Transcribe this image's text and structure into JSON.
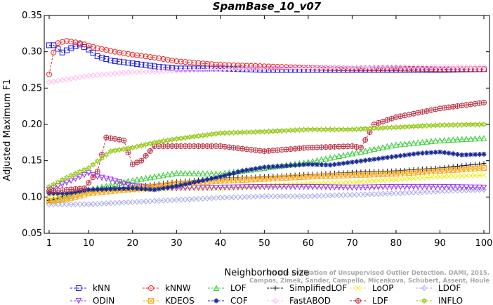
{
  "chart_data": {
    "type": "line",
    "title": "SpamBase_10_v07",
    "xlabel": "Neighborhood size",
    "ylabel": "Adjusted Maximum F1",
    "xlim": [
      1,
      100
    ],
    "ylim": [
      0.05,
      0.35
    ],
    "x_ticks": [
      1,
      10,
      20,
      30,
      40,
      50,
      60,
      70,
      80,
      90,
      100
    ],
    "y_ticks": [
      0.05,
      0.1,
      0.15,
      0.2,
      0.25,
      0.3,
      0.35
    ],
    "y_tick_labels": [
      "0.05",
      "0.10",
      "0.15",
      "0.20",
      "0.25",
      "0.30",
      "0.35"
    ],
    "grid": false,
    "legend_placement": "bottom",
    "watermark_lines": [
      "Campos, Zimek, Sander, Campello, Micenkova, Schubert, Assent, Houle",
      "On the Evaluation of Unsupervised Outlier Detection. DAMI, 2015."
    ],
    "series": [
      {
        "name": "kNN",
        "color": "#2222dd",
        "marker": "square",
        "points": [
          [
            1,
            0.309
          ],
          [
            2,
            0.309
          ],
          [
            4,
            0.299
          ],
          [
            6,
            0.305
          ],
          [
            8,
            0.31
          ],
          [
            10,
            0.303
          ],
          [
            12,
            0.294
          ],
          [
            15,
            0.288
          ],
          [
            20,
            0.284
          ],
          [
            25,
            0.28
          ],
          [
            30,
            0.277
          ],
          [
            40,
            0.277
          ],
          [
            50,
            0.275
          ],
          [
            60,
            0.275
          ],
          [
            70,
            0.275
          ],
          [
            80,
            0.275
          ],
          [
            90,
            0.275
          ],
          [
            100,
            0.276
          ]
        ]
      },
      {
        "name": "kNNW",
        "color": "#ee2222",
        "marker": "circle",
        "points": [
          [
            1,
            0.269
          ],
          [
            2,
            0.299
          ],
          [
            3,
            0.312
          ],
          [
            5,
            0.315
          ],
          [
            8,
            0.312
          ],
          [
            12,
            0.305
          ],
          [
            16,
            0.3
          ],
          [
            20,
            0.296
          ],
          [
            25,
            0.292
          ],
          [
            30,
            0.287
          ],
          [
            40,
            0.282
          ],
          [
            50,
            0.28
          ],
          [
            60,
            0.278
          ],
          [
            70,
            0.277
          ],
          [
            80,
            0.277
          ],
          [
            90,
            0.276
          ],
          [
            100,
            0.276
          ]
        ]
      },
      {
        "name": "LOF",
        "color": "#33cc33",
        "marker": "triangle-up",
        "points": [
          [
            1,
            0.094
          ],
          [
            5,
            0.099
          ],
          [
            10,
            0.11
          ],
          [
            20,
            0.123
          ],
          [
            30,
            0.133
          ],
          [
            40,
            0.132
          ],
          [
            50,
            0.14
          ],
          [
            60,
            0.148
          ],
          [
            70,
            0.16
          ],
          [
            80,
            0.172
          ],
          [
            90,
            0.178
          ],
          [
            100,
            0.181
          ]
        ]
      },
      {
        "name": "SimplifiedLOF",
        "color": "#111111",
        "marker": "plus",
        "points": [
          [
            1,
            0.095
          ],
          [
            5,
            0.103
          ],
          [
            10,
            0.11
          ],
          [
            20,
            0.114
          ],
          [
            30,
            0.121
          ],
          [
            40,
            0.126
          ],
          [
            50,
            0.128
          ],
          [
            60,
            0.131
          ],
          [
            70,
            0.134
          ],
          [
            80,
            0.136
          ],
          [
            90,
            0.14
          ],
          [
            100,
            0.146
          ]
        ]
      },
      {
        "name": "LoOP",
        "color": "#eeee11",
        "marker": "x",
        "points": [
          [
            1,
            0.1
          ],
          [
            5,
            0.104
          ],
          [
            10,
            0.107
          ],
          [
            20,
            0.109
          ],
          [
            30,
            0.112
          ],
          [
            40,
            0.112
          ],
          [
            50,
            0.115
          ],
          [
            60,
            0.118
          ],
          [
            70,
            0.12
          ],
          [
            80,
            0.124
          ],
          [
            90,
            0.128
          ],
          [
            100,
            0.13
          ]
        ]
      },
      {
        "name": "LDOF",
        "color": "#aaaaee",
        "marker": "diamond",
        "points": [
          [
            1,
            0.09
          ],
          [
            5,
            0.09
          ],
          [
            10,
            0.09
          ],
          [
            20,
            0.093
          ],
          [
            30,
            0.096
          ],
          [
            40,
            0.099
          ],
          [
            50,
            0.101
          ],
          [
            60,
            0.101
          ],
          [
            70,
            0.103
          ],
          [
            80,
            0.105
          ],
          [
            90,
            0.108
          ],
          [
            100,
            0.11
          ]
        ]
      },
      {
        "name": "ODIN",
        "color": "#9933ee",
        "marker": "triangle-down",
        "points": [
          [
            1,
            0.11
          ],
          [
            5,
            0.12
          ],
          [
            10,
            0.133
          ],
          [
            12,
            0.128
          ],
          [
            15,
            0.124
          ],
          [
            20,
            0.115
          ],
          [
            30,
            0.112
          ],
          [
            40,
            0.113
          ],
          [
            50,
            0.114
          ],
          [
            60,
            0.114
          ],
          [
            70,
            0.113
          ],
          [
            80,
            0.114
          ],
          [
            90,
            0.114
          ],
          [
            100,
            0.113
          ]
        ]
      },
      {
        "name": "KDEOS",
        "color": "#ffaa22",
        "marker": "square-x",
        "points": [
          [
            1,
            0.094
          ],
          [
            5,
            0.097
          ],
          [
            10,
            0.105
          ],
          [
            20,
            0.111
          ],
          [
            30,
            0.118
          ],
          [
            40,
            0.122
          ],
          [
            50,
            0.125
          ],
          [
            60,
            0.128
          ],
          [
            70,
            0.13
          ],
          [
            80,
            0.132
          ],
          [
            90,
            0.136
          ],
          [
            100,
            0.14
          ]
        ]
      },
      {
        "name": "COF",
        "color": "#1a2a99",
        "marker": "asterisk",
        "points": [
          [
            1,
            0.105
          ],
          [
            5,
            0.105
          ],
          [
            10,
            0.11
          ],
          [
            20,
            0.112
          ],
          [
            25,
            0.11
          ],
          [
            30,
            0.115
          ],
          [
            40,
            0.128
          ],
          [
            45,
            0.136
          ],
          [
            50,
            0.141
          ],
          [
            55,
            0.143
          ],
          [
            60,
            0.145
          ],
          [
            65,
            0.144
          ],
          [
            70,
            0.148
          ],
          [
            75,
            0.152
          ],
          [
            80,
            0.156
          ],
          [
            85,
            0.16
          ],
          [
            90,
            0.162
          ],
          [
            95,
            0.158
          ],
          [
            100,
            0.159
          ]
        ]
      },
      {
        "name": "FastABOD",
        "color": "#ffbbee",
        "marker": "diamond",
        "points": [
          [
            1,
            0.258
          ],
          [
            5,
            0.262
          ],
          [
            10,
            0.267
          ],
          [
            20,
            0.272
          ],
          [
            30,
            0.274
          ],
          [
            40,
            0.276
          ],
          [
            50,
            0.277
          ],
          [
            60,
            0.278
          ],
          [
            70,
            0.278
          ],
          [
            80,
            0.279
          ],
          [
            90,
            0.279
          ],
          [
            100,
            0.279
          ]
        ]
      },
      {
        "name": "LDF",
        "color": "#bb3344",
        "marker": "circle-plus",
        "points": [
          [
            1,
            0.108
          ],
          [
            5,
            0.11
          ],
          [
            9,
            0.112
          ],
          [
            12,
            0.135
          ],
          [
            14,
            0.182
          ],
          [
            18,
            0.178
          ],
          [
            20,
            0.145
          ],
          [
            22,
            0.15
          ],
          [
            25,
            0.17
          ],
          [
            30,
            0.17
          ],
          [
            40,
            0.17
          ],
          [
            50,
            0.163
          ],
          [
            60,
            0.168
          ],
          [
            70,
            0.17
          ],
          [
            72,
            0.168
          ],
          [
            75,
            0.2
          ],
          [
            80,
            0.21
          ],
          [
            90,
            0.222
          ],
          [
            100,
            0.23
          ]
        ]
      },
      {
        "name": "INFLO",
        "color": "#99cc22",
        "marker": "star",
        "points": [
          [
            1,
            0.114
          ],
          [
            5,
            0.127
          ],
          [
            10,
            0.14
          ],
          [
            15,
            0.163
          ],
          [
            20,
            0.168
          ],
          [
            25,
            0.175
          ],
          [
            30,
            0.18
          ],
          [
            40,
            0.188
          ],
          [
            50,
            0.19
          ],
          [
            60,
            0.193
          ],
          [
            70,
            0.193
          ],
          [
            80,
            0.196
          ],
          [
            90,
            0.199
          ],
          [
            100,
            0.2
          ]
        ]
      }
    ]
  }
}
